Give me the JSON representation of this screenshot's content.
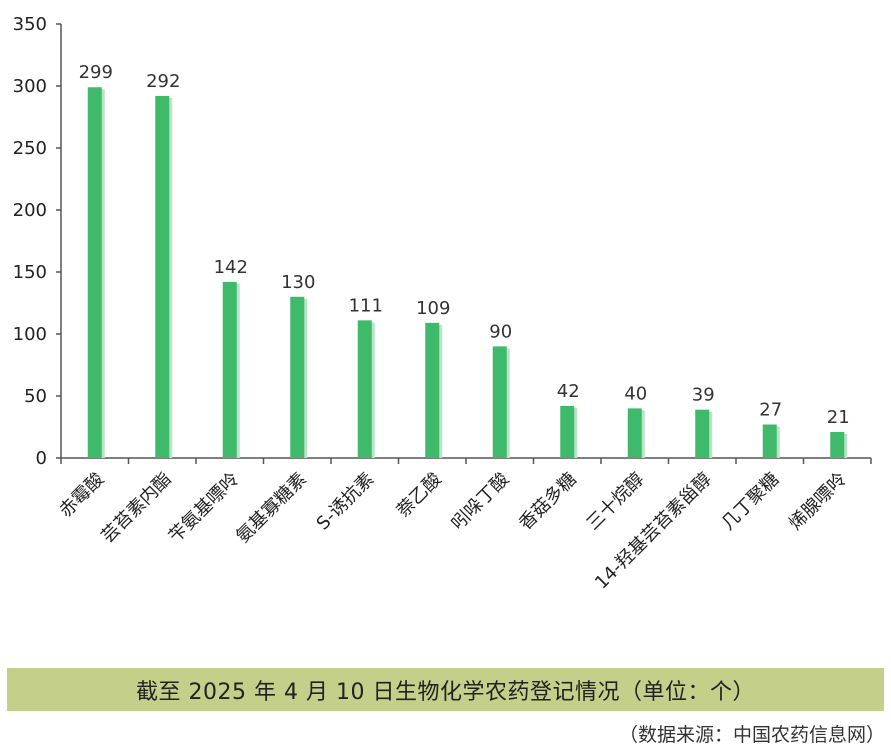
{
  "chart_data": {
    "type": "bar",
    "categories": [
      "赤霉酸",
      "芸苔素内酯",
      "苄氨基嘌呤",
      "氨基寡糖素",
      "S-诱抗素",
      "萘乙酸",
      "吲哚丁酸",
      "香菇多糖",
      "三十烷醇",
      "14-羟基芸苔素甾醇",
      "几丁聚糖",
      "烯腺嘌呤"
    ],
    "values": [
      299,
      292,
      142,
      130,
      111,
      109,
      90,
      42,
      40,
      39,
      27,
      21
    ],
    "ylim": [
      0,
      350
    ],
    "yticks": [
      0,
      50,
      100,
      150,
      200,
      250,
      300,
      350
    ],
    "xlabel": "",
    "ylabel": "",
    "bar_color": "#3fb96a",
    "shadow_color": "#b9e3c6",
    "grid": false
  },
  "caption": "截至 2025 年 4 月 10 日生物化学农药登记情况（单位：个）",
  "source": "（数据来源：中国农药信息网）"
}
